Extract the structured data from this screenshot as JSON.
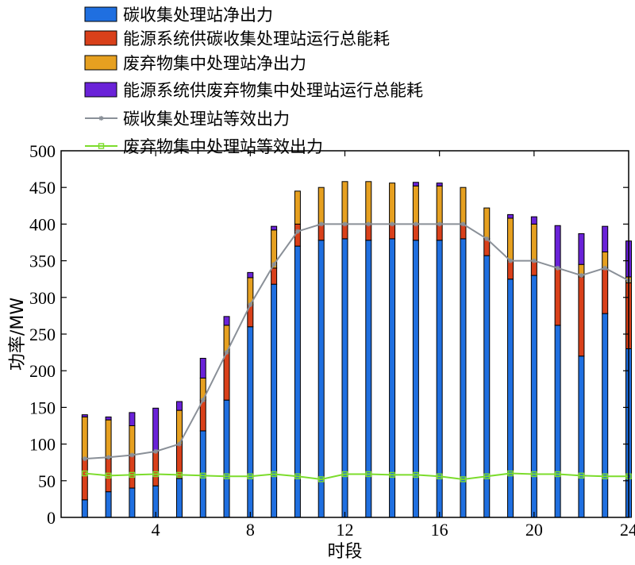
{
  "chart_data": {
    "type": "bar",
    "stacked": true,
    "xlabel": "时段",
    "ylabel": "功率/MW",
    "xlim": [
      0,
      24
    ],
    "ylim": [
      0,
      500
    ],
    "xticks": [
      4,
      8,
      12,
      16,
      20,
      24
    ],
    "yticks": [
      0,
      50,
      100,
      150,
      200,
      250,
      300,
      350,
      400,
      450,
      500
    ],
    "grid": false,
    "legend_position": "top-left",
    "x": [
      1,
      2,
      3,
      4,
      5,
      6,
      7,
      8,
      9,
      10,
      11,
      12,
      13,
      14,
      15,
      16,
      17,
      18,
      19,
      20,
      21,
      22,
      23,
      24
    ],
    "series": [
      {
        "name": "碳收集处理站净出力",
        "kind": "bar",
        "color": "#1F6FE0",
        "values": [
          24,
          35,
          40,
          43,
          53,
          118,
          160,
          260,
          318,
          370,
          378,
          380,
          378,
          380,
          378,
          378,
          380,
          357,
          325,
          330,
          262,
          220,
          278,
          230
        ]
      },
      {
        "name": "能源系统供碳收集处理站运行总能耗",
        "kind": "bar",
        "color": "#D9401A",
        "values": [
          56,
          45,
          45,
          47,
          47,
          42,
          65,
          30,
          22,
          30,
          22,
          20,
          22,
          20,
          22,
          22,
          20,
          23,
          25,
          20,
          78,
          108,
          62,
          90
        ]
      },
      {
        "name": "废弃物集中处理站净出力",
        "kind": "bar",
        "color": "#E6A020",
        "values": [
          57,
          53,
          40,
          0,
          46,
          30,
          37,
          37,
          52,
          45,
          50,
          58,
          58,
          56,
          52,
          52,
          50,
          42,
          58,
          50,
          0,
          17,
          22,
          8
        ]
      },
      {
        "name": "能源系统供废弃物集中处理站运行总能耗",
        "kind": "bar",
        "color": "#6A22D8",
        "values": [
          3,
          4,
          18,
          59,
          12,
          27,
          12,
          7,
          5,
          0,
          0,
          0,
          0,
          0,
          5,
          4,
          0,
          0,
          5,
          10,
          58,
          42,
          35,
          49
        ]
      },
      {
        "name": "碳收集处理站等效出力",
        "kind": "line",
        "color": "#8A9098",
        "marker": "asterisk",
        "values": [
          80,
          82,
          85,
          90,
          100,
          160,
          225,
          290,
          345,
          390,
          400,
          400,
          400,
          400,
          400,
          400,
          400,
          380,
          350,
          350,
          340,
          330,
          340,
          323
        ]
      },
      {
        "name": "废弃物集中处理站等效出力",
        "kind": "line",
        "color": "#7CDC2C",
        "marker": "square",
        "values": [
          60,
          57,
          58,
          59,
          58,
          57,
          56,
          56,
          59,
          56,
          52,
          59,
          59,
          58,
          58,
          56,
          52,
          56,
          60,
          59,
          59,
          57,
          56,
          56
        ]
      }
    ]
  }
}
